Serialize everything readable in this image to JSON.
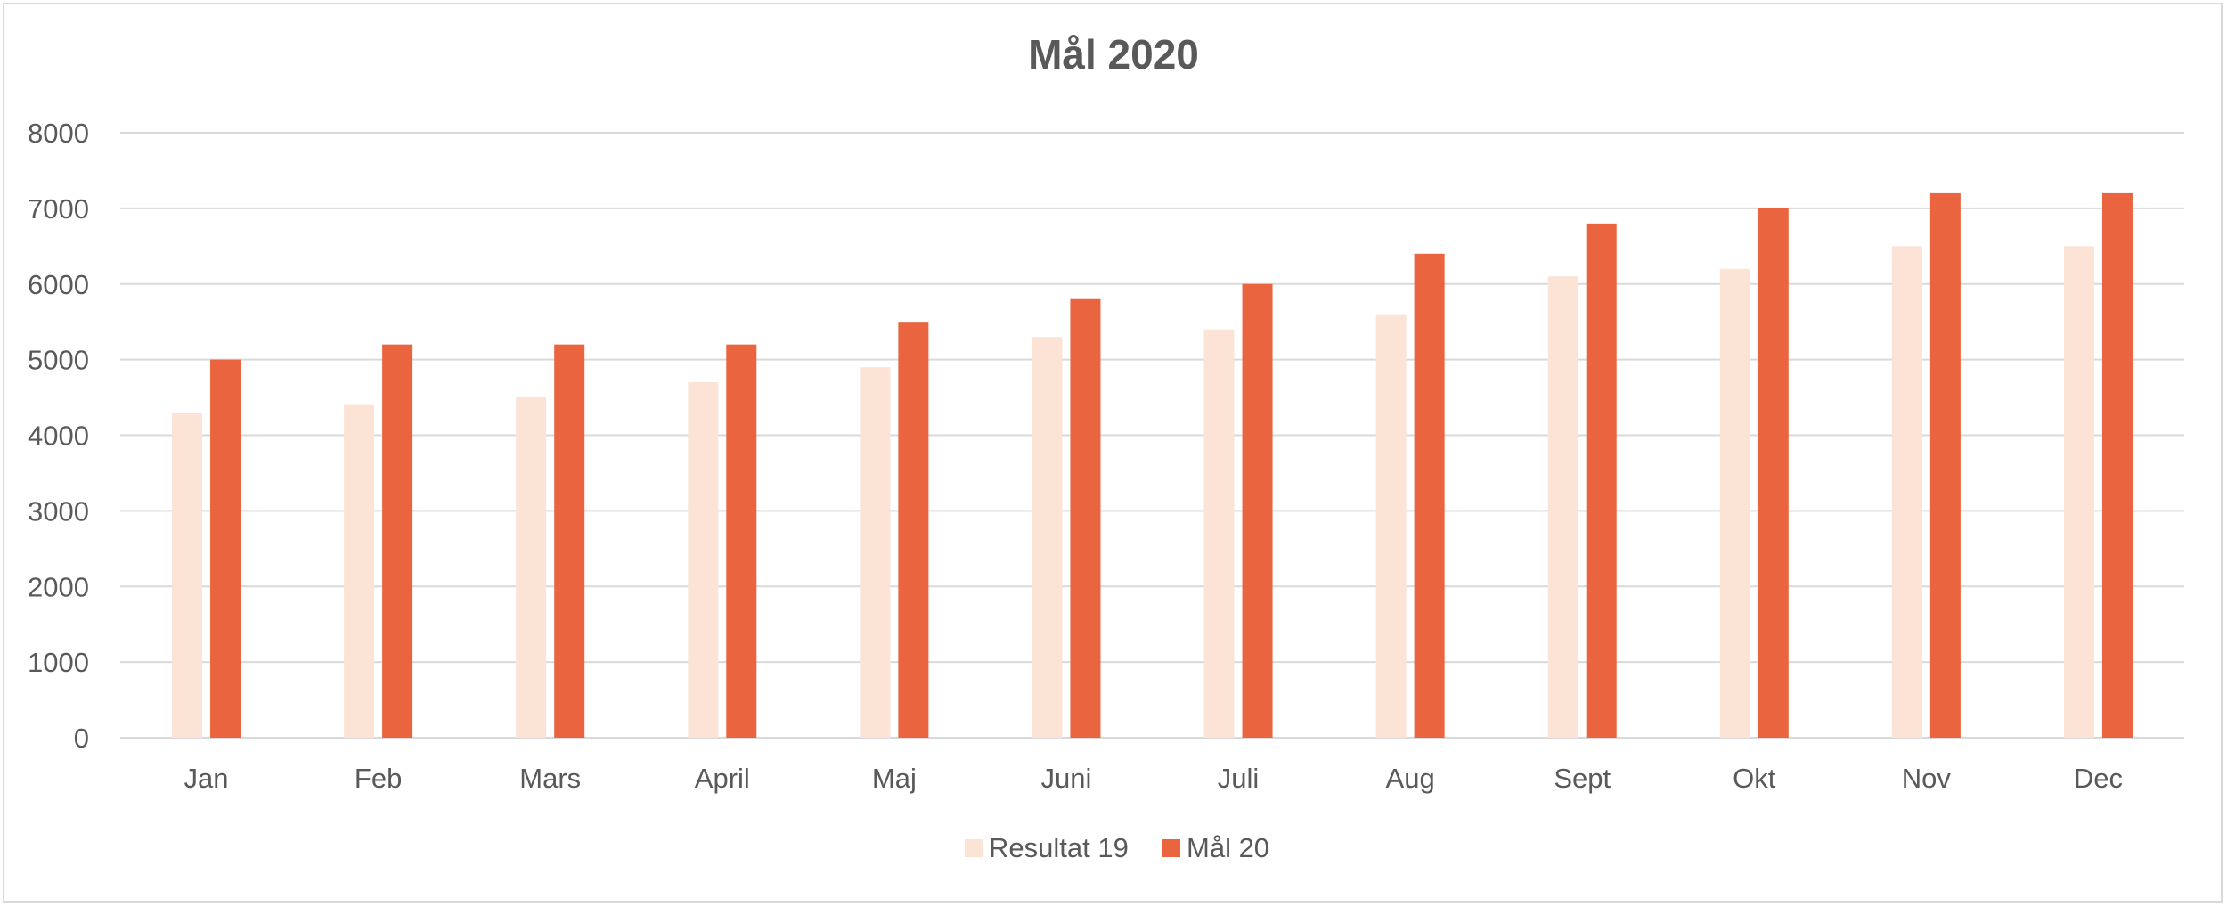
{
  "chart_data": {
    "type": "bar",
    "title": "Mål 2020",
    "xlabel": "",
    "ylabel": "",
    "categories": [
      "Jan",
      "Feb",
      "Mars",
      "April",
      "Maj",
      "Juni",
      "Juli",
      "Aug",
      "Sept",
      "Okt",
      "Nov",
      "Dec"
    ],
    "series": [
      {
        "name": "Resultat 19",
        "color": "#fbe3d6",
        "values": [
          4300,
          4400,
          4500,
          4700,
          4900,
          5300,
          5400,
          5600,
          6100,
          6200,
          6500,
          6500
        ]
      },
      {
        "name": "Mål 20",
        "color": "#e9643f",
        "values": [
          5000,
          5200,
          5200,
          5200,
          5500,
          5800,
          6000,
          6400,
          6800,
          7000,
          7200,
          7200
        ]
      }
    ],
    "ylim": [
      0,
      8000
    ],
    "yticks": [
      0,
      1000,
      2000,
      3000,
      4000,
      5000,
      6000,
      7000,
      8000
    ],
    "grid": true,
    "legend_position": "bottom",
    "colors": {
      "gridline": "#d9d9d9",
      "text": "#595959"
    }
  }
}
